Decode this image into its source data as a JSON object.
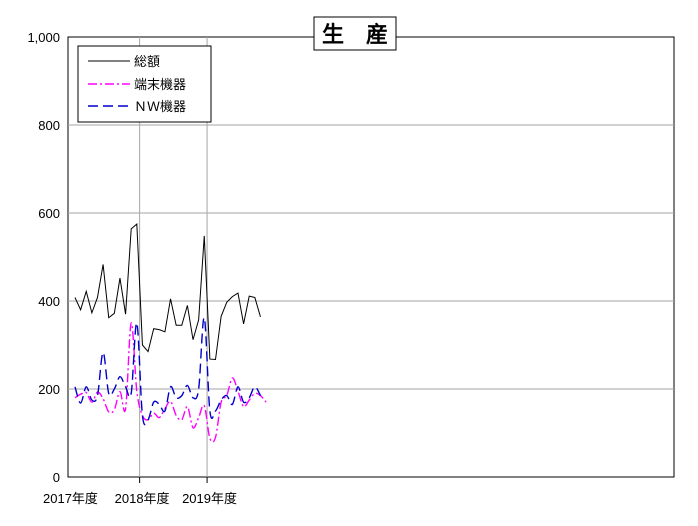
{
  "chart_data": {
    "type": "line",
    "title": "生　産",
    "xlabel": "",
    "ylabel": "",
    "ylim": [
      0,
      1000
    ],
    "y_ticks": [
      0,
      200,
      400,
      600,
      800,
      1000
    ],
    "y_tick_labels": [
      "0",
      "200",
      "400",
      "600",
      "800",
      "1,000"
    ],
    "x_year_labels": [
      "2017年度",
      "2018年度",
      "2019年度"
    ],
    "grid": true,
    "legend_position": "top-left",
    "months": [
      "2017-04",
      "2017-05",
      "2017-06",
      "2017-07",
      "2017-08",
      "2017-09",
      "2017-10",
      "2017-11",
      "2017-12",
      "2018-01",
      "2018-02",
      "2018-03",
      "2018-04",
      "2018-05",
      "2018-06",
      "2018-07",
      "2018-08",
      "2018-09",
      "2018-10",
      "2018-11",
      "2018-12",
      "2019-01",
      "2019-02",
      "2019-03",
      "2019-04",
      "2019-05",
      "2019-06",
      "2019-07",
      "2019-08",
      "2019-09",
      "2019-10",
      "2019-11",
      "2019-12",
      "2020-01",
      "2020-02",
      "2020-03"
    ],
    "series": [
      {
        "name": "総額",
        "color": "#000000",
        "style": "solid",
        "smooth": false,
        "values": [
          408,
          380,
          422,
          373,
          408,
          483,
          362,
          372,
          452,
          370,
          564,
          575,
          300,
          285,
          337,
          335,
          330,
          405,
          345,
          345,
          390,
          312,
          357,
          548,
          268,
          267,
          365,
          397,
          410,
          418,
          348,
          411,
          408,
          364
        ]
      },
      {
        "name": "端末機器",
        "color": "#ff00ff",
        "style": "dashdot",
        "smooth": true,
        "values": [
          180,
          188,
          192,
          170,
          193,
          178,
          148,
          153,
          194,
          155,
          350,
          195,
          140,
          130,
          145,
          135,
          155,
          172,
          140,
          130,
          160,
          112,
          135,
          162,
          88,
          90,
          170,
          185,
          225,
          195,
          160,
          175,
          190,
          185,
          170
        ]
      },
      {
        "name": "ＮＷ機器",
        "color": "#0000cc",
        "style": "dashed",
        "smooth": true,
        "values": [
          205,
          168,
          205,
          175,
          185,
          283,
          190,
          200,
          228,
          205,
          190,
          350,
          140,
          130,
          170,
          165,
          150,
          205,
          180,
          185,
          208,
          180,
          200,
          362,
          150,
          150,
          175,
          185,
          165,
          205,
          170,
          180,
          205,
          185
        ]
      }
    ]
  }
}
